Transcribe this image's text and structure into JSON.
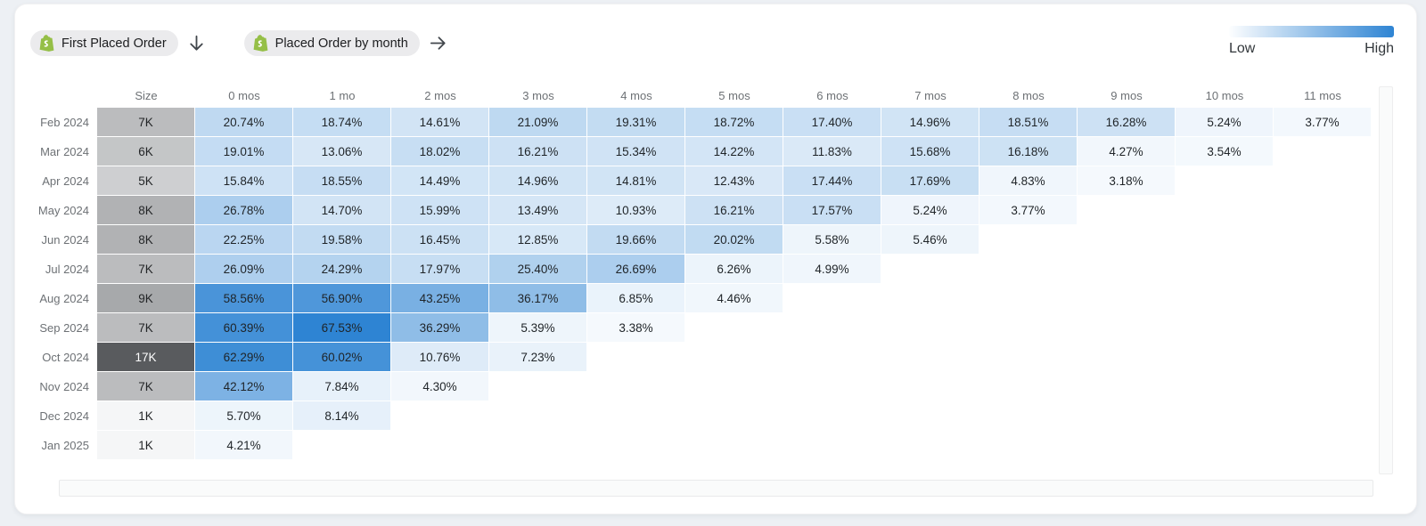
{
  "toolbar": {
    "cohort_pill_label": "First Placed Order",
    "metric_pill_label": "Placed Order by month"
  },
  "legend": {
    "low_label": "Low",
    "high_label": "High"
  },
  "colors": {
    "heat_low": "#ffffff",
    "heat_high": "#2e84d3",
    "size_low": "#f5f6f7",
    "size_high": "#595b5e",
    "shopify_green": "#95bf47"
  },
  "chart_data": {
    "type": "heatmap",
    "columns": [
      "Size",
      "0 mos",
      "1 mo",
      "2 mos",
      "3 mos",
      "4 mos",
      "5 mos",
      "6 mos",
      "7 mos",
      "8 mos",
      "9 mos",
      "10 mos",
      "11 mos"
    ],
    "value_unit": "%",
    "value_range": [
      0,
      67.53
    ],
    "size_range_k": [
      1,
      17
    ],
    "legend_position": "top-right",
    "rows": [
      {
        "label": "Feb 2024",
        "size_label": "7K",
        "size_k": 7,
        "values": [
          20.74,
          18.74,
          14.61,
          21.09,
          19.31,
          18.72,
          17.4,
          14.96,
          18.51,
          16.28,
          5.24,
          3.77
        ]
      },
      {
        "label": "Mar 2024",
        "size_label": "6K",
        "size_k": 6,
        "values": [
          19.01,
          13.06,
          18.02,
          16.21,
          15.34,
          14.22,
          11.83,
          15.68,
          16.18,
          4.27,
          3.54
        ]
      },
      {
        "label": "Apr 2024",
        "size_label": "5K",
        "size_k": 5,
        "values": [
          15.84,
          18.55,
          14.49,
          14.96,
          14.81,
          12.43,
          17.44,
          17.69,
          4.83,
          3.18
        ]
      },
      {
        "label": "May 2024",
        "size_label": "8K",
        "size_k": 8,
        "values": [
          26.78,
          14.7,
          15.99,
          13.49,
          10.93,
          16.21,
          17.57,
          5.24,
          3.77
        ]
      },
      {
        "label": "Jun 2024",
        "size_label": "8K",
        "size_k": 8,
        "values": [
          22.25,
          19.58,
          16.45,
          12.85,
          19.66,
          20.02,
          5.58,
          5.46
        ]
      },
      {
        "label": "Jul 2024",
        "size_label": "7K",
        "size_k": 7,
        "values": [
          26.09,
          24.29,
          17.97,
          25.4,
          26.69,
          6.26,
          4.99
        ]
      },
      {
        "label": "Aug 2024",
        "size_label": "9K",
        "size_k": 9,
        "values": [
          58.56,
          56.9,
          43.25,
          36.17,
          6.85,
          4.46
        ]
      },
      {
        "label": "Sep 2024",
        "size_label": "7K",
        "size_k": 7,
        "values": [
          60.39,
          67.53,
          36.29,
          5.39,
          3.38
        ]
      },
      {
        "label": "Oct 2024",
        "size_label": "17K",
        "size_k": 17,
        "values": [
          62.29,
          60.02,
          10.76,
          7.23
        ]
      },
      {
        "label": "Nov 2024",
        "size_label": "7K",
        "size_k": 7,
        "values": [
          42.12,
          7.84,
          4.3
        ]
      },
      {
        "label": "Dec 2024",
        "size_label": "1K",
        "size_k": 1,
        "values": [
          5.7,
          8.14
        ]
      },
      {
        "label": "Jan 2025",
        "size_label": "1K",
        "size_k": 1,
        "values": [
          4.21
        ]
      }
    ]
  }
}
